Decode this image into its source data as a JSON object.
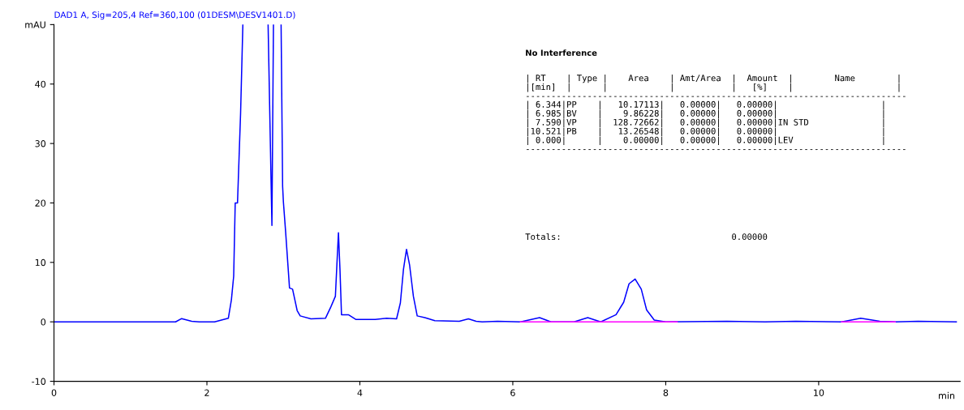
{
  "chart_data": {
    "type": "line",
    "title": "DAD1 A, Sig=205,4 Ref=360,100 (01DESM\\DESV1401.D)",
    "xlabel": "min",
    "xlim": [
      0,
      11.85
    ],
    "xticks": [
      0,
      2,
      4,
      6,
      8,
      10
    ],
    "ylim": [
      -10,
      50
    ],
    "yticks": [
      -10,
      0,
      10,
      20,
      30,
      40,
      {
        "value": 50,
        "label": "mAU"
      }
    ],
    "grid": false,
    "legend": false,
    "marker": "none",
    "line_style": "solid",
    "series": [
      {
        "color": "#0000ff",
        "x": [
          0,
          1.59,
          1.67,
          1.8,
          1.9,
          2.1,
          2.28,
          2.32,
          2.35,
          2.37,
          2.4,
          2.44,
          2.47,
          2.6,
          2.8,
          2.85,
          2.87,
          2.92,
          2.97,
          2.99,
          3.0,
          3.03,
          3.08,
          3.12,
          3.18,
          3.22,
          3.36,
          3.55,
          3.62,
          3.68,
          3.7,
          3.72,
          3.74,
          3.76,
          3.85,
          3.95,
          4.2,
          4.35,
          4.48,
          4.53,
          4.57,
          4.61,
          4.65,
          4.7,
          4.75,
          4.85,
          4.98,
          5.3,
          5.42,
          5.52,
          5.6,
          5.8,
          6.1,
          6.35,
          6.5,
          6.8,
          6.98,
          7.15,
          7.35,
          7.45,
          7.52,
          7.6,
          7.68,
          7.75,
          7.85,
          8.0,
          8.8,
          9.3,
          9.7,
          10.3,
          10.55,
          10.8,
          11.0,
          11.3,
          11.8
        ],
        "values": [
          0,
          0,
          0.55,
          0.1,
          0,
          0,
          0.6,
          3.7,
          7.7,
          20,
          20,
          35,
          50,
          null,
          50,
          16.2,
          50,
          null,
          50,
          22.8,
          20.2,
          15,
          5.7,
          5.5,
          1.9,
          1.0,
          0.5,
          0.6,
          2.5,
          4.3,
          9.7,
          15.0,
          8.8,
          1.2,
          1.2,
          0.4,
          0.4,
          0.6,
          0.5,
          3.2,
          8.8,
          12.2,
          9.6,
          4.3,
          1.0,
          0.7,
          0.2,
          0.1,
          0.5,
          0.1,
          0,
          0.1,
          0,
          0.7,
          0,
          0,
          0.7,
          0,
          1.2,
          3.3,
          6.4,
          7.2,
          5.5,
          2.0,
          0.3,
          0,
          0.1,
          0,
          0.1,
          0,
          0.6,
          0.1,
          0,
          0.1,
          0
        ]
      },
      {
        "color": "#ff00ff",
        "x": [
          6.1,
          8.15,
          9.0,
          10.3,
          11.0
        ],
        "values": [
          0,
          0,
          null,
          0,
          0
        ]
      }
    ],
    "annotations": [
      "No Interference",
      "| RT    | Type |    Area    | Amt/Area  |  Amount  |        Name        |\n|[min]  |      |            |           |   [%]    |                    |\n--------------------------------------------------------------------------\n| 6.344|PP    |   10.17113|   0.00000|   0.00000|                    |\n| 6.985|BV    |    9.86228|   0.00000|   0.00000|                    |\n| 7.590|VP    |  128.72662|   0.00000|   0.00000|IN STD              |\n|10.521|PB    |   13.26548|   0.00000|   0.00000|                    |\n| 0.000|      |    0.00000|   0.00000|   0.00000|LEV                 |\n--------------------------------------------------------------------------",
      "Totals:                                 0.00000"
    ]
  }
}
